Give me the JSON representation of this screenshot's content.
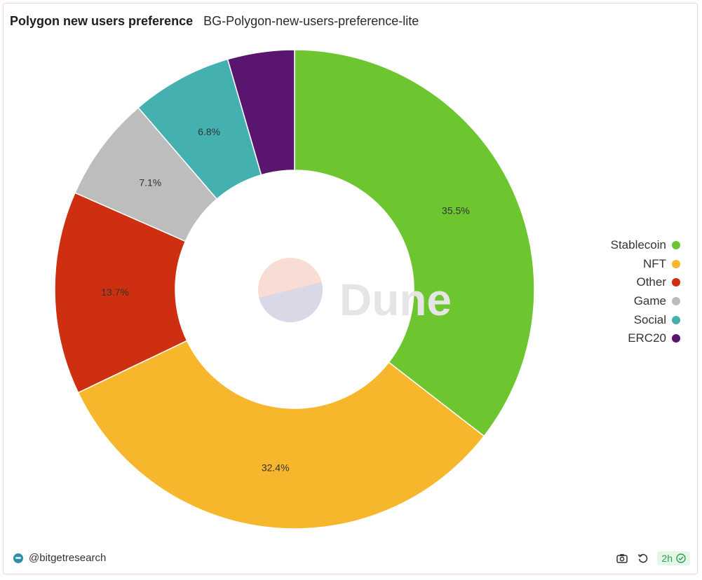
{
  "header": {
    "title": "Polygon new users preference",
    "subtitle": "BG-Polygon-new-users-preference-lite"
  },
  "watermark": {
    "text": "Dune"
  },
  "footer": {
    "author": "@bitgetresearch",
    "refresh_badge": "2h",
    "icons": [
      "camera-icon",
      "refresh-icon",
      "check-circle-icon"
    ]
  },
  "chart_data": {
    "type": "pie",
    "donut": true,
    "categories": [
      "Stablecoin",
      "NFT",
      "Other",
      "Game",
      "Social",
      "ERC20"
    ],
    "values": [
      35.5,
      32.4,
      13.7,
      7.1,
      6.8,
      4.5
    ],
    "labels": [
      "35.5%",
      "32.4%",
      "13.7%",
      "7.1%",
      "6.8%",
      ""
    ],
    "colors": [
      "#6dc630",
      "#f7b72d",
      "#cd2f10",
      "#bdbdbd",
      "#44b0b0",
      "#5a166e"
    ],
    "legend_position": "right"
  }
}
